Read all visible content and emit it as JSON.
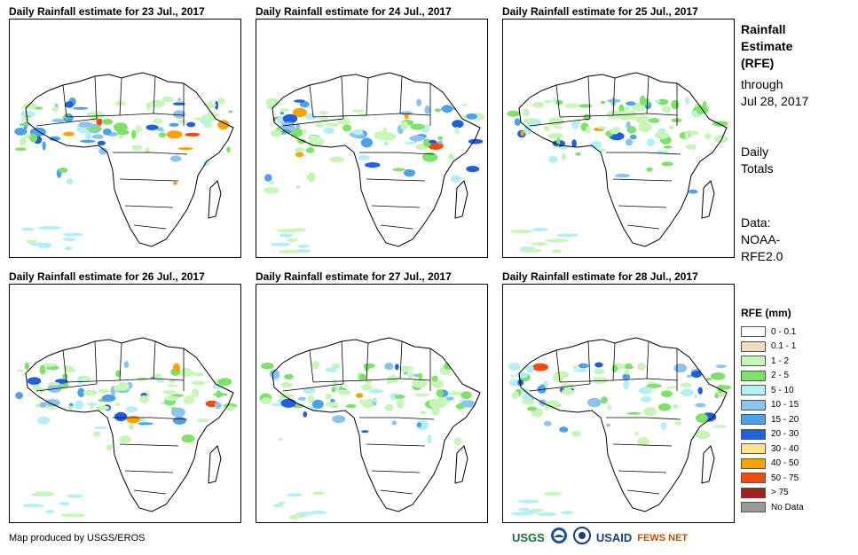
{
  "panels": [
    {
      "title": "Daily Rainfall estimate for 23 Jul., 2017"
    },
    {
      "title": "Daily Rainfall estimate for 24 Jul., 2017"
    },
    {
      "title": "Daily Rainfall estimate for 25 Jul., 2017"
    },
    {
      "title": "Daily Rainfall estimate for 26 Jul., 2017"
    },
    {
      "title": "Daily Rainfall estimate for 27 Jul., 2017"
    },
    {
      "title": "Daily Rainfall estimate for 28 Jul., 2017"
    }
  ],
  "sidebar": {
    "title_lines": [
      "Rainfall",
      "Estimate",
      "(RFE)"
    ],
    "through_lines": [
      "through",
      "Jul 28, 2017"
    ],
    "daily_lines": [
      "Daily",
      "Totals"
    ],
    "source_lines": [
      "Data:",
      "NOAA-",
      "RFE2.0"
    ]
  },
  "legend": {
    "title": "RFE (mm)",
    "items": [
      {
        "label": "0 - 0.1",
        "color": "#ffffff"
      },
      {
        "label": "0.1 - 1",
        "color": "#f2dcc0"
      },
      {
        "label": "1 - 2",
        "color": "#c8f5b8"
      },
      {
        "label": "2 - 5",
        "color": "#7ee26a"
      },
      {
        "label": "5 - 10",
        "color": "#b3eff5"
      },
      {
        "label": "10 - 15",
        "color": "#8cc3f0"
      },
      {
        "label": "15 - 20",
        "color": "#4ea0ec"
      },
      {
        "label": "20 - 30",
        "color": "#1f5fe0"
      },
      {
        "label": "30 - 40",
        "color": "#fde38a"
      },
      {
        "label": "40 - 50",
        "color": "#f9a300"
      },
      {
        "label": "50 - 75",
        "color": "#f24a10"
      },
      {
        "label": "> 75",
        "color": "#a61f1f"
      },
      {
        "label": "No Data",
        "color": "#999999"
      }
    ]
  },
  "credit": "Map produced by USGS/EROS",
  "logos": {
    "usgs": "USGS",
    "usaid": "USAID",
    "fewsnet": "FEWS NET"
  }
}
